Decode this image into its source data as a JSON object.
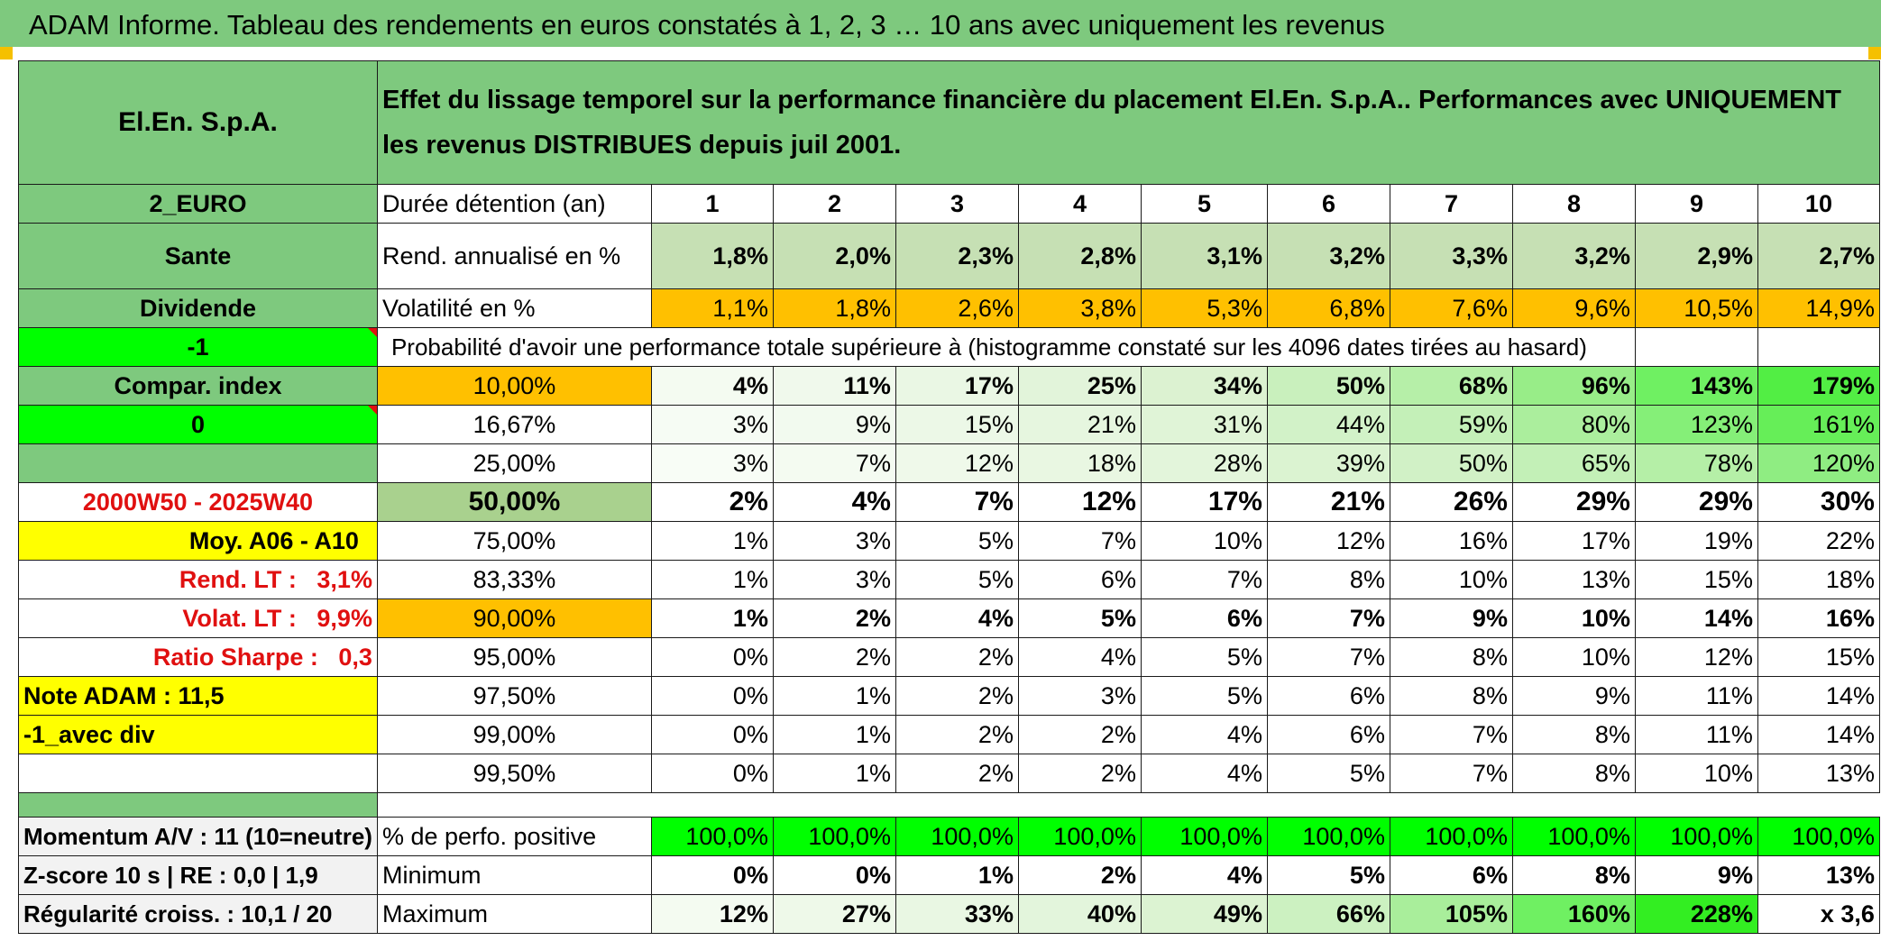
{
  "title": "ADAM Informe. Tableau des rendements en euros constatés à 1, 2, 3 … 10 ans avec uniquement les revenus",
  "header": {
    "name": "El.En. S.p.A.",
    "description": "Effet du lissage temporel sur la performance financière du placement El.En. S.p.A.. Performances avec UNIQUEMENT les revenus DISTRIBUES depuis juil 2001."
  },
  "left": {
    "code": "2_EURO",
    "sector": "Sante",
    "type": "Dividende",
    "param1": "-1",
    "compar": "Compar. index",
    "param2": "0",
    "empty": "",
    "period": "2000W50 - 2025W40",
    "moy": "Moy. A06 - A10",
    "rend_lt_label": "Rend. LT :",
    "rend_lt_value": "3,1%",
    "volat_lt_label": "Volat. LT :",
    "volat_lt_value": "9,9%",
    "sharpe_label": "Ratio Sharpe :",
    "sharpe_value": "0,3",
    "note": "Note ADAM : 11,5",
    "avec_div": "-1_avec div"
  },
  "labels": {
    "duree": "Durée détention (an)",
    "rend": "Rend. annualisé en %",
    "volat": "Volatilité en %",
    "prob": "Probabilité d'avoir une performance totale supérieure à (histogramme constaté sur les 4096 dates tirées au hasard)"
  },
  "years": [
    "1",
    "2",
    "3",
    "4",
    "5",
    "6",
    "7",
    "8",
    "9",
    "10"
  ],
  "rend": [
    "1,8%",
    "2,0%",
    "2,3%",
    "2,8%",
    "3,1%",
    "3,2%",
    "3,3%",
    "3,2%",
    "2,9%",
    "2,7%"
  ],
  "volat": [
    "1,1%",
    "1,8%",
    "2,6%",
    "3,8%",
    "5,3%",
    "6,8%",
    "7,6%",
    "9,6%",
    "10,5%",
    "14,9%"
  ],
  "percentiles": [
    {
      "p": "10,00%",
      "v": [
        "4%",
        "11%",
        "17%",
        "25%",
        "34%",
        "50%",
        "68%",
        "96%",
        "143%",
        "179%"
      ]
    },
    {
      "p": "16,67%",
      "v": [
        "3%",
        "9%",
        "15%",
        "21%",
        "31%",
        "44%",
        "59%",
        "80%",
        "123%",
        "161%"
      ]
    },
    {
      "p": "25,00%",
      "v": [
        "3%",
        "7%",
        "12%",
        "18%",
        "28%",
        "39%",
        "50%",
        "65%",
        "78%",
        "120%"
      ]
    },
    {
      "p": "50,00%",
      "v": [
        "2%",
        "4%",
        "7%",
        "12%",
        "17%",
        "21%",
        "26%",
        "29%",
        "29%",
        "30%"
      ]
    },
    {
      "p": "75,00%",
      "v": [
        "1%",
        "3%",
        "5%",
        "7%",
        "10%",
        "12%",
        "16%",
        "17%",
        "19%",
        "22%"
      ]
    },
    {
      "p": "83,33%",
      "v": [
        "1%",
        "3%",
        "5%",
        "6%",
        "7%",
        "8%",
        "10%",
        "13%",
        "15%",
        "18%"
      ]
    },
    {
      "p": "90,00%",
      "v": [
        "1%",
        "2%",
        "4%",
        "5%",
        "6%",
        "7%",
        "9%",
        "10%",
        "14%",
        "16%"
      ]
    },
    {
      "p": "95,00%",
      "v": [
        "0%",
        "2%",
        "2%",
        "4%",
        "5%",
        "7%",
        "8%",
        "10%",
        "12%",
        "15%"
      ]
    },
    {
      "p": "97,50%",
      "v": [
        "0%",
        "1%",
        "2%",
        "3%",
        "5%",
        "6%",
        "8%",
        "9%",
        "11%",
        "14%"
      ]
    },
    {
      "p": "99,00%",
      "v": [
        "0%",
        "1%",
        "2%",
        "2%",
        "4%",
        "6%",
        "7%",
        "8%",
        "11%",
        "14%"
      ]
    },
    {
      "p": "99,50%",
      "v": [
        "0%",
        "1%",
        "2%",
        "2%",
        "4%",
        "5%",
        "7%",
        "8%",
        "10%",
        "13%"
      ]
    }
  ],
  "bottom": {
    "momentum": "Momentum A/V : 11 (10=neutre)",
    "zscore": "Z-score 10 s | RE : 0,0 | 1,9",
    "regularite": "Régularité croiss. : 10,1 / 20",
    "pos_label": "% de perfo. positive",
    "min_label": "Minimum",
    "max_label": "Maximum",
    "pos": [
      "100,0%",
      "100,0%",
      "100,0%",
      "100,0%",
      "100,0%",
      "100,0%",
      "100,0%",
      "100,0%",
      "100,0%",
      "100,0%"
    ],
    "min": [
      "0%",
      "0%",
      "1%",
      "2%",
      "4%",
      "5%",
      "6%",
      "8%",
      "9%",
      "13%"
    ],
    "max": [
      "12%",
      "27%",
      "33%",
      "40%",
      "49%",
      "66%",
      "105%",
      "160%",
      "228%",
      "x 3,6"
    ]
  },
  "colors": {
    "header_green": "#7ec97e",
    "light_green": "#c6e0b4",
    "orange": "#ffc000",
    "yellow": "#ffff00",
    "bright_green": "#00ff00",
    "red_text": "#e01010"
  }
}
